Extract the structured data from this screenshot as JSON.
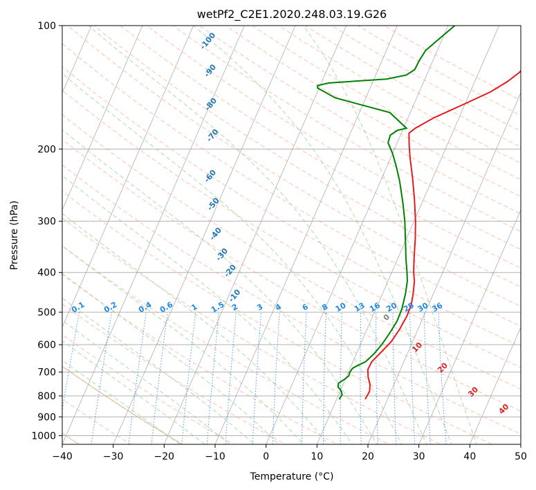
{
  "chart_data": {
    "type": "line",
    "title": "wetPf2_C2E1.2020.248.03.19.G26",
    "xlabel": "Temperature (°C)",
    "ylabel": "Pressure (hPa)",
    "xlim": [
      -40,
      50
    ],
    "ylim": [
      1050,
      100
    ],
    "y_scale": "log",
    "grid": true,
    "x_ticks": [
      -40,
      -30,
      -20,
      -10,
      0,
      10,
      20,
      30,
      40,
      50
    ],
    "y_ticks": [
      100,
      200,
      300,
      400,
      500,
      600,
      700,
      800,
      900,
      1000
    ],
    "series": [
      {
        "color": "#e41a1c",
        "points": [
          [
            15.6,
            815
          ],
          [
            15.8,
            780
          ],
          [
            15.3,
            750
          ],
          [
            14.3,
            720
          ],
          [
            13.6,
            690
          ],
          [
            13.7,
            660
          ],
          [
            14.6,
            630
          ],
          [
            15.8,
            590
          ],
          [
            16.4,
            550
          ],
          [
            16.7,
            510
          ],
          [
            16.6,
            480
          ],
          [
            16.0,
            450
          ],
          [
            15.2,
            420
          ],
          [
            14.3,
            400
          ],
          [
            13.2,
            370
          ],
          [
            11.7,
            330
          ],
          [
            10.3,
            300
          ],
          [
            8.2,
            265
          ],
          [
            6.0,
            235
          ],
          [
            3.8,
            210
          ],
          [
            2.5,
            195
          ],
          [
            1.5,
            183
          ],
          [
            2.3,
            178
          ],
          [
            5.0,
            168
          ],
          [
            10.0,
            155
          ],
          [
            14.0,
            145
          ],
          [
            16.4,
            137
          ],
          [
            18.0,
            130
          ],
          [
            18.7,
            123
          ],
          [
            19.5,
            118
          ],
          [
            22.0,
            112
          ],
          [
            24.5,
            106
          ],
          [
            25.3,
            100
          ]
        ]
      },
      {
        "color": "#008000",
        "points": [
          [
            10.5,
            815
          ],
          [
            10.7,
            795
          ],
          [
            10.2,
            778
          ],
          [
            9.2,
            760
          ],
          [
            9.0,
            745
          ],
          [
            9.8,
            730
          ],
          [
            10.4,
            715
          ],
          [
            10.3,
            700
          ],
          [
            10.5,
            685
          ],
          [
            11.2,
            675
          ],
          [
            12.5,
            660
          ],
          [
            13.5,
            630
          ],
          [
            14.2,
            600
          ],
          [
            14.8,
            560
          ],
          [
            15.2,
            525
          ],
          [
            15.1,
            490
          ],
          [
            14.5,
            450
          ],
          [
            13.8,
            420
          ],
          [
            13.0,
            400
          ],
          [
            11.6,
            370
          ],
          [
            10.0,
            335
          ],
          [
            8.2,
            300
          ],
          [
            6.2,
            270
          ],
          [
            3.8,
            240
          ],
          [
            2.0,
            222
          ],
          [
            0.0,
            205
          ],
          [
            -1.8,
            193
          ],
          [
            -2.0,
            185
          ],
          [
            -1.0,
            180
          ],
          [
            0.6,
            178
          ],
          [
            -4.0,
            163
          ],
          [
            -16.0,
            150
          ],
          [
            -20.3,
            142
          ],
          [
            -20.5,
            140
          ],
          [
            -18.5,
            138
          ],
          [
            -7.5,
            135
          ],
          [
            -4.0,
            132
          ],
          [
            -2.8,
            128
          ],
          [
            -2.7,
            122
          ],
          [
            -2.3,
            115
          ],
          [
            -0.7,
            108
          ],
          [
            1.3,
            100
          ]
        ]
      }
    ],
    "dry_adiabat_labels": [
      "-100",
      "-90",
      "-80",
      "-70",
      "-60",
      "-50",
      "-40",
      "-30",
      "-20",
      "-10"
    ],
    "mixing_ratio_labels": [
      "0.1",
      "0.2",
      "0.4",
      "0.6",
      "1",
      "1.5",
      "2",
      "3",
      "4",
      "6",
      "8",
      "10",
      "13",
      "16",
      "20",
      "25",
      "30",
      "36"
    ],
    "moist_adiabat_labels": [
      "0",
      "10",
      "20",
      "30",
      "40"
    ],
    "colors": {
      "isotherm": "#8c8c8c",
      "dry_adiabat": "#ffa07a",
      "moist_adiabat": "#90c890",
      "mixing_ratio": "#1e88e5",
      "dry_label": "#1f77b4",
      "moist_label": "#d62728",
      "zero_label": "#808080",
      "dry_curve": "#d2b48c"
    }
  }
}
